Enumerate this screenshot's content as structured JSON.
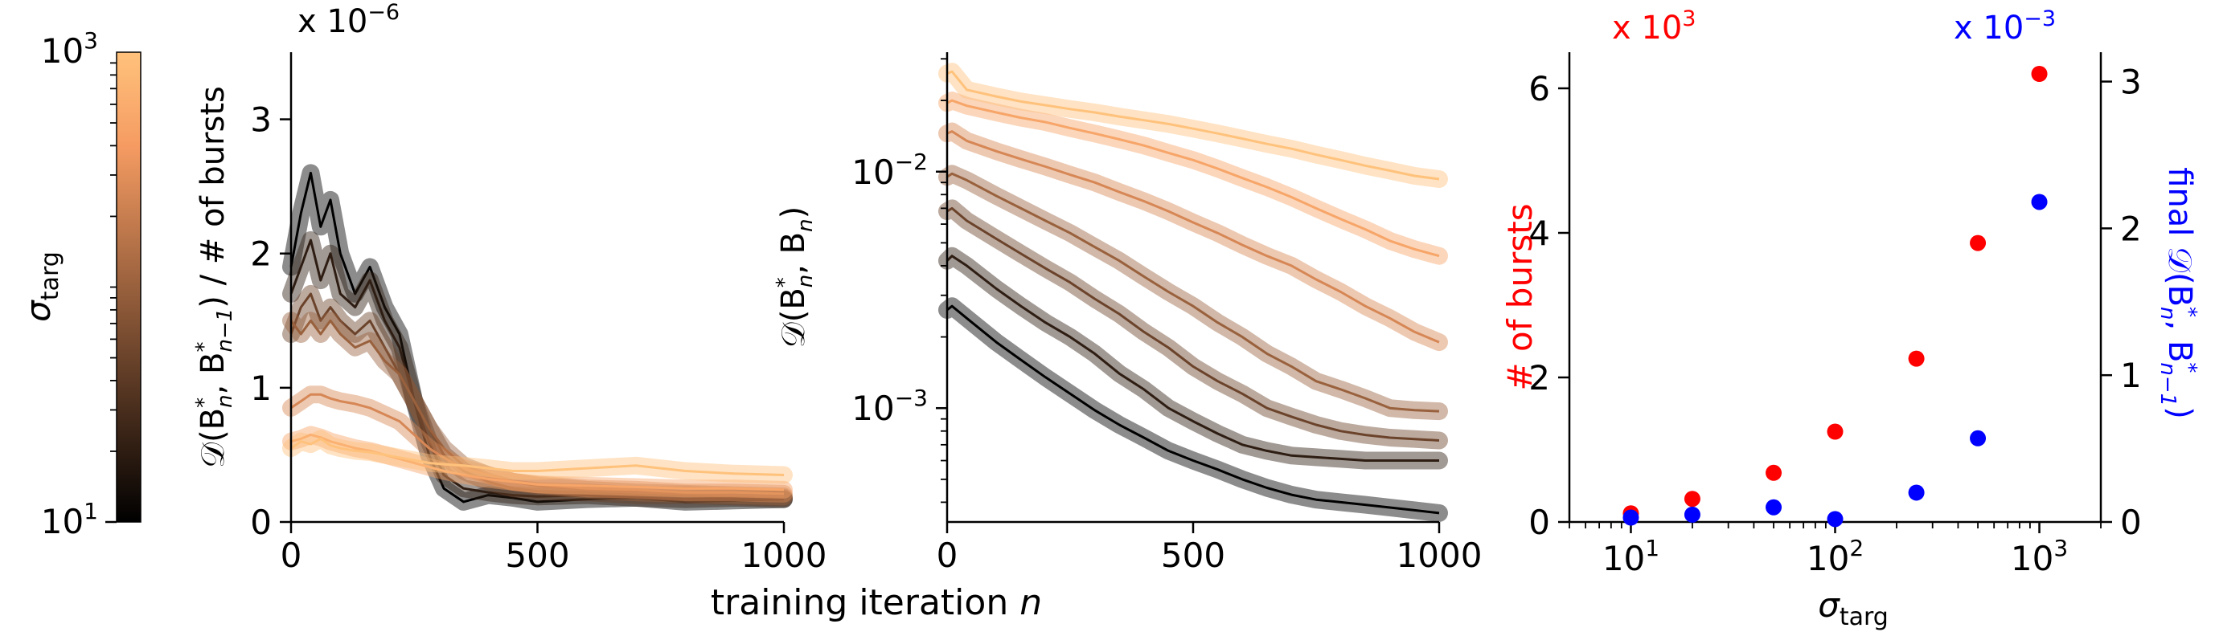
{
  "colorbar": {
    "label": "σ",
    "label_sub": "targ",
    "colormap": "copper",
    "scale": "log",
    "range": [
      10,
      1000
    ],
    "ticks": [
      {
        "value": 10,
        "base": "10",
        "exp": "1"
      },
      {
        "value": 1000,
        "base": "10",
        "exp": "3"
      }
    ],
    "stops": [
      "#000000",
      "#3d2618",
      "#7a4d31",
      "#b87449",
      "#f59b62",
      "#ffc27c"
    ]
  },
  "shared_xlabel": {
    "text": "training iteration ",
    "var": "n"
  },
  "chart_data": [
    {
      "type": "line",
      "id": "panel-a",
      "ylabel": "𝒟(B*n, B*n−1) / # of bursts",
      "ylabel_parts": [
        "𝒟(B",
        "*",
        "n",
        ", B",
        "*",
        "n−1",
        ") / # of bursts"
      ],
      "multiplier": {
        "prefix": "x 10",
        "exp": "−6"
      },
      "xlim": [
        0,
        1000
      ],
      "ylim": [
        0,
        3.5
      ],
      "xticks": [
        0,
        500,
        1000
      ],
      "yticks": [
        0,
        1,
        2,
        3
      ],
      "grid": false,
      "series": [
        {
          "sigma": 10,
          "x": [
            0,
            20,
            40,
            60,
            80,
            100,
            130,
            160,
            190,
            220,
            250,
            280,
            310,
            350,
            400,
            450,
            500,
            600,
            700,
            800,
            900,
            1000
          ],
          "y": [
            1.9,
            2.3,
            2.6,
            2.2,
            2.4,
            2.0,
            1.7,
            1.9,
            1.6,
            1.4,
            0.9,
            0.5,
            0.25,
            0.15,
            0.2,
            0.18,
            0.15,
            0.17,
            0.18,
            0.15,
            0.16,
            0.17
          ]
        },
        {
          "sigma": 20,
          "x": [
            0,
            20,
            40,
            60,
            80,
            100,
            130,
            160,
            190,
            220,
            250,
            280,
            310,
            350,
            400,
            450,
            500,
            600,
            700,
            800,
            900,
            1000
          ],
          "y": [
            1.7,
            1.9,
            2.1,
            1.8,
            2.0,
            1.7,
            1.6,
            1.8,
            1.5,
            1.3,
            0.9,
            0.6,
            0.35,
            0.25,
            0.22,
            0.2,
            0.19,
            0.2,
            0.18,
            0.17,
            0.18,
            0.17
          ]
        },
        {
          "sigma": 50,
          "x": [
            0,
            20,
            40,
            60,
            80,
            100,
            130,
            160,
            190,
            220,
            250,
            280,
            310,
            350,
            400,
            450,
            500,
            600,
            700,
            800,
            900,
            1000
          ],
          "y": [
            1.4,
            1.6,
            1.7,
            1.5,
            1.6,
            1.5,
            1.4,
            1.5,
            1.3,
            1.1,
            0.9,
            0.7,
            0.5,
            0.38,
            0.3,
            0.25,
            0.23,
            0.22,
            0.2,
            0.2,
            0.19,
            0.18
          ]
        },
        {
          "sigma": 100,
          "x": [
            0,
            20,
            40,
            60,
            80,
            100,
            130,
            160,
            190,
            220,
            250,
            280,
            310,
            350,
            400,
            450,
            500,
            600,
            700,
            800,
            900,
            1000
          ],
          "y": [
            1.5,
            1.4,
            1.5,
            1.4,
            1.5,
            1.4,
            1.3,
            1.35,
            1.2,
            1.1,
            0.9,
            0.7,
            0.55,
            0.42,
            0.35,
            0.3,
            0.27,
            0.24,
            0.22,
            0.21,
            0.2,
            0.19
          ]
        },
        {
          "sigma": 250,
          "x": [
            0,
            20,
            40,
            60,
            80,
            100,
            130,
            160,
            190,
            220,
            250,
            280,
            310,
            350,
            400,
            450,
            500,
            600,
            700,
            800,
            900,
            1000
          ],
          "y": [
            0.85,
            0.9,
            0.95,
            0.95,
            0.92,
            0.9,
            0.88,
            0.85,
            0.8,
            0.75,
            0.65,
            0.55,
            0.48,
            0.4,
            0.35,
            0.3,
            0.28,
            0.25,
            0.24,
            0.22,
            0.22,
            0.21
          ]
        },
        {
          "sigma": 500,
          "x": [
            0,
            20,
            40,
            60,
            80,
            100,
            130,
            160,
            190,
            220,
            250,
            280,
            310,
            350,
            400,
            450,
            500,
            600,
            700,
            800,
            900,
            1000
          ],
          "y": [
            0.6,
            0.62,
            0.65,
            0.63,
            0.6,
            0.58,
            0.55,
            0.53,
            0.5,
            0.47,
            0.44,
            0.41,
            0.38,
            0.35,
            0.32,
            0.3,
            0.28,
            0.27,
            0.26,
            0.25,
            0.25,
            0.24
          ]
        },
        {
          "sigma": 1000,
          "x": [
            0,
            20,
            40,
            60,
            80,
            100,
            130,
            160,
            190,
            220,
            250,
            280,
            310,
            350,
            400,
            450,
            500,
            600,
            700,
            800,
            900,
            1000
          ],
          "y": [
            0.55,
            0.6,
            0.58,
            0.62,
            0.57,
            0.55,
            0.53,
            0.52,
            0.5,
            0.48,
            0.46,
            0.44,
            0.43,
            0.42,
            0.4,
            0.38,
            0.38,
            0.4,
            0.42,
            0.38,
            0.36,
            0.35
          ]
        }
      ]
    },
    {
      "type": "line",
      "id": "panel-b",
      "ylabel": "𝒟(B*n, Bn)",
      "ylabel_parts": [
        "𝒟(B",
        "*",
        "n",
        ", B",
        "",
        "n",
        ")"
      ],
      "xlim": [
        0,
        1000
      ],
      "ylim": [
        0.00033,
        0.032
      ],
      "yscale": "log",
      "xticks": [
        0,
        500,
        1000
      ],
      "yticks": [
        {
          "value": 0.01,
          "base": "10",
          "exp": "−2"
        },
        {
          "value": 0.001,
          "base": "10",
          "exp": "−3"
        }
      ],
      "grid": false,
      "series": [
        {
          "sigma": 10,
          "x": [
            0,
            10,
            40,
            100,
            150,
            200,
            250,
            300,
            350,
            400,
            450,
            500,
            550,
            600,
            650,
            700,
            750,
            800,
            850,
            900,
            950,
            1000
          ],
          "y": [
            0.0026,
            0.0027,
            0.0024,
            0.0019,
            0.0016,
            0.00135,
            0.00115,
            0.00098,
            0.00085,
            0.00075,
            0.00066,
            0.0006,
            0.00055,
            0.0005,
            0.00046,
            0.00043,
            0.00041,
            0.0004,
            0.00039,
            0.00038,
            0.00037,
            0.00036
          ]
        },
        {
          "sigma": 20,
          "x": [
            0,
            10,
            40,
            100,
            150,
            200,
            250,
            300,
            350,
            400,
            450,
            500,
            550,
            600,
            650,
            700,
            750,
            800,
            850,
            900,
            950,
            1000
          ],
          "y": [
            0.0042,
            0.0044,
            0.004,
            0.0032,
            0.0027,
            0.0023,
            0.002,
            0.0017,
            0.0014,
            0.0012,
            0.001,
            0.00088,
            0.00078,
            0.0007,
            0.00066,
            0.00063,
            0.00062,
            0.00061,
            0.0006,
            0.0006,
            0.0006,
            0.0006
          ]
        },
        {
          "sigma": 50,
          "x": [
            0,
            10,
            40,
            100,
            150,
            200,
            250,
            300,
            350,
            400,
            450,
            500,
            550,
            600,
            650,
            700,
            750,
            800,
            850,
            900,
            950,
            1000
          ],
          "y": [
            0.0068,
            0.007,
            0.0062,
            0.0052,
            0.0045,
            0.0039,
            0.0034,
            0.0029,
            0.0025,
            0.0021,
            0.0018,
            0.0015,
            0.0013,
            0.00115,
            0.001,
            0.00092,
            0.00085,
            0.0008,
            0.00077,
            0.00075,
            0.00074,
            0.00073
          ]
        },
        {
          "sigma": 100,
          "x": [
            0,
            10,
            40,
            100,
            150,
            200,
            250,
            300,
            350,
            400,
            450,
            500,
            550,
            600,
            650,
            700,
            750,
            800,
            850,
            900,
            950,
            1000
          ],
          "y": [
            0.0095,
            0.0098,
            0.0092,
            0.0079,
            0.007,
            0.0062,
            0.0055,
            0.0048,
            0.0042,
            0.0036,
            0.0031,
            0.0027,
            0.0023,
            0.002,
            0.0017,
            0.0015,
            0.0013,
            0.0012,
            0.0011,
            0.001,
            0.00098,
            0.00097
          ]
        },
        {
          "sigma": 250,
          "x": [
            0,
            10,
            40,
            100,
            150,
            200,
            250,
            300,
            350,
            400,
            450,
            500,
            550,
            600,
            650,
            700,
            750,
            800,
            850,
            900,
            950,
            1000
          ],
          "y": [
            0.0145,
            0.0148,
            0.0135,
            0.0122,
            0.0113,
            0.0105,
            0.0097,
            0.009,
            0.0082,
            0.0075,
            0.0068,
            0.0061,
            0.0055,
            0.0049,
            0.0044,
            0.004,
            0.0035,
            0.0031,
            0.0027,
            0.0024,
            0.0021,
            0.0019
          ]
        },
        {
          "sigma": 500,
          "x": [
            0,
            10,
            40,
            100,
            150,
            200,
            250,
            300,
            350,
            400,
            450,
            500,
            550,
            600,
            650,
            700,
            750,
            800,
            850,
            900,
            950,
            1000
          ],
          "y": [
            0.0195,
            0.02,
            0.019,
            0.0178,
            0.0169,
            0.0162,
            0.0153,
            0.0145,
            0.0137,
            0.0129,
            0.012,
            0.0112,
            0.0103,
            0.0094,
            0.0086,
            0.0078,
            0.007,
            0.0063,
            0.0057,
            0.0051,
            0.0047,
            0.0044
          ]
        },
        {
          "sigma": 1000,
          "x": [
            0,
            10,
            40,
            100,
            150,
            200,
            250,
            300,
            350,
            400,
            450,
            500,
            550,
            600,
            650,
            700,
            750,
            800,
            850,
            900,
            950,
            1000
          ],
          "y": [
            0.026,
            0.0265,
            0.0222,
            0.0208,
            0.0198,
            0.0191,
            0.0184,
            0.0178,
            0.0171,
            0.0165,
            0.0159,
            0.0152,
            0.0145,
            0.0138,
            0.0131,
            0.0125,
            0.0118,
            0.0112,
            0.0106,
            0.0101,
            0.0096,
            0.0093
          ]
        }
      ]
    },
    {
      "type": "scatter",
      "id": "panel-c",
      "xlabel": "σ",
      "xlabel_sub": "targ",
      "xscale": "log",
      "xlim": [
        5,
        2000
      ],
      "xticks": [
        {
          "value": 10,
          "base": "10",
          "exp": "1"
        },
        {
          "value": 100,
          "base": "10",
          "exp": "2"
        },
        {
          "value": 1000,
          "base": "10",
          "exp": "3"
        }
      ],
      "left_axis": {
        "label": "# of bursts",
        "color": "#ff0000",
        "multiplier": {
          "prefix": "x 10",
          "exp": "3"
        },
        "ylim": [
          0,
          6.5
        ],
        "yticks": [
          0,
          2,
          4,
          6
        ]
      },
      "right_axis": {
        "label": "final 𝒟(B*n, B*n−1)",
        "label_parts": [
          "final 𝒟(B",
          "*",
          "n",
          ", B",
          "*",
          "n−1",
          ")"
        ],
        "color": "#0000ff",
        "multiplier": {
          "prefix": "x 10",
          "exp": "−3"
        },
        "ylim": [
          0,
          3.2
        ],
        "yticks": [
          0,
          1,
          2,
          3
        ]
      },
      "series": [
        {
          "name": "# of bursts",
          "axis": "left",
          "color": "#ff0000",
          "x": [
            10,
            20,
            50,
            100,
            250,
            500,
            1000
          ],
          "y": [
            0.12,
            0.32,
            0.68,
            1.25,
            2.26,
            3.86,
            6.2
          ]
        },
        {
          "name": "final 𝒟(B*n, B*n−1)",
          "axis": "right",
          "color": "#0000ff",
          "x": [
            10,
            20,
            50,
            100,
            250,
            500,
            1000
          ],
          "y": [
            0.03,
            0.05,
            0.1,
            0.02,
            0.2,
            0.57,
            2.18
          ]
        }
      ]
    }
  ]
}
